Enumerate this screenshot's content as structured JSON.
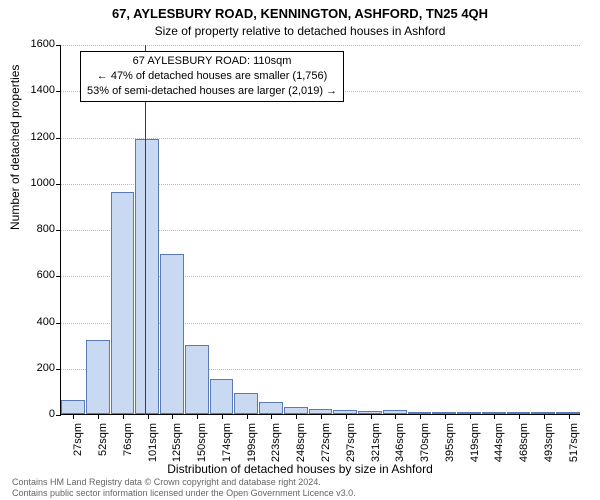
{
  "chart": {
    "type": "histogram",
    "title1": "67, AYLESBURY ROAD, KENNINGTON, ASHFORD, TN25 4QH",
    "title2": "Size of property relative to detached houses in Ashford",
    "ylabel": "Number of detached properties",
    "xlabel": "Distribution of detached houses by size in Ashford",
    "ylim": [
      0,
      1600
    ],
    "ytick_step": 200,
    "yticks": [
      0,
      200,
      400,
      600,
      800,
      1000,
      1200,
      1400,
      1600
    ],
    "xticks": [
      "27sqm",
      "52sqm",
      "76sqm",
      "101sqm",
      "125sqm",
      "150sqm",
      "174sqm",
      "199sqm",
      "223sqm",
      "248sqm",
      "272sqm",
      "297sqm",
      "321sqm",
      "346sqm",
      "370sqm",
      "395sqm",
      "419sqm",
      "444sqm",
      "468sqm",
      "493sqm",
      "517sqm"
    ],
    "values": [
      60,
      320,
      960,
      1190,
      690,
      300,
      150,
      90,
      50,
      30,
      20,
      18,
      12,
      18,
      10,
      8,
      6,
      5,
      4,
      4,
      3
    ],
    "bar_fill": "#c9d9f2",
    "bar_border": "#5a7ab5",
    "background_color": "#ffffff",
    "grid_color": "#bbbbbb",
    "marker_color": "#cc0000",
    "marker_bin_after": 3,
    "annotation": {
      "line1": "67 AYLESBURY ROAD: 110sqm",
      "line2": "← 47% of detached houses are smaller (1,756)",
      "line3": "53% of semi-detached houses are larger (2,019) →"
    },
    "footer": {
      "line1": "Contains HM Land Registry data © Crown copyright and database right 2024.",
      "line2": "Contains public sector information licensed under the Open Government Licence v3.0."
    },
    "title_fontsize": 13,
    "subtitle_fontsize": 12,
    "tick_fontsize": 11,
    "label_fontsize": 12,
    "footer_fontsize": 9
  }
}
